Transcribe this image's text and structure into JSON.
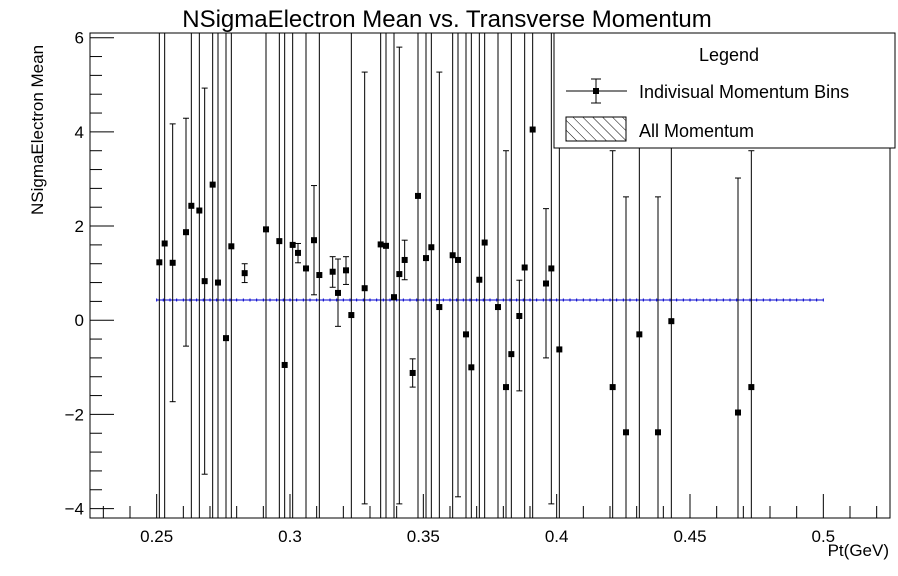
{
  "chart_data": {
    "type": "scatter",
    "title": "NSigmaElectron Mean vs. Transverse Momentum",
    "xlabel": "Pt(GeV)",
    "ylabel": "NSigmaElectron Mean",
    "xlim": [
      0.225,
      0.525
    ],
    "ylim": [
      -4.2,
      6.1
    ],
    "x_ticks": [
      0.25,
      0.3,
      0.35,
      0.4,
      0.45,
      0.5
    ],
    "x_tick_labels": [
      "0.25",
      "0.3",
      "0.35",
      "0.4",
      "0.45",
      "0.5"
    ],
    "y_ticks": [
      -4,
      -2,
      0,
      2,
      4,
      6
    ],
    "y_tick_labels": [
      "−4",
      "−2",
      "0",
      "2",
      "4",
      "6"
    ],
    "legend": {
      "title": "Legend",
      "position": "top-right",
      "entries": [
        {
          "label": "Indivisual Momentum Bins",
          "style": "marker-errorbar"
        },
        {
          "label": "All Momentum",
          "style": "hatched-fill"
        }
      ]
    },
    "series": [
      {
        "name": "Indivisual Momentum Bins",
        "color": "#000000",
        "points": [
          {
            "x": 0.251,
            "y": 1.23,
            "lo": -4.2,
            "hi": 6.1
          },
          {
            "x": 0.253,
            "y": 1.63,
            "lo": -4.2,
            "hi": 6.1
          },
          {
            "x": 0.256,
            "y": 1.22,
            "lo": -1.73,
            "hi": 4.17
          },
          {
            "x": 0.261,
            "y": 1.87,
            "lo": -0.55,
            "hi": 4.29
          },
          {
            "x": 0.263,
            "y": 2.43,
            "lo": -4.2,
            "hi": 6.1
          },
          {
            "x": 0.266,
            "y": 2.33,
            "lo": -4.2,
            "hi": 6.1
          },
          {
            "x": 0.268,
            "y": 0.83,
            "lo": -3.27,
            "hi": 4.93
          },
          {
            "x": 0.271,
            "y": 2.88,
            "lo": -4.2,
            "hi": 6.1
          },
          {
            "x": 0.273,
            "y": 0.8,
            "lo": -4.2,
            "hi": 6.1
          },
          {
            "x": 0.276,
            "y": -0.38,
            "lo": -4.2,
            "hi": 6.1
          },
          {
            "x": 0.278,
            "y": 1.57,
            "lo": -4.2,
            "hi": 6.1
          },
          {
            "x": 0.283,
            "y": 1.0,
            "lo": 0.8,
            "hi": 1.2
          },
          {
            "x": 0.291,
            "y": 1.93,
            "lo": -4.2,
            "hi": 6.1
          },
          {
            "x": 0.296,
            "y": 1.68,
            "lo": -4.2,
            "hi": 6.1
          },
          {
            "x": 0.298,
            "y": -0.95,
            "lo": -4.2,
            "hi": 6.1
          },
          {
            "x": 0.301,
            "y": 1.6,
            "lo": -4.2,
            "hi": 6.1
          },
          {
            "x": 0.303,
            "y": 1.43,
            "lo": 1.22,
            "hi": 1.63
          },
          {
            "x": 0.306,
            "y": 1.1,
            "lo": -4.2,
            "hi": 6.1
          },
          {
            "x": 0.309,
            "y": 1.7,
            "lo": 0.54,
            "hi": 2.86
          },
          {
            "x": 0.311,
            "y": 0.96,
            "lo": -4.2,
            "hi": 6.1
          },
          {
            "x": 0.316,
            "y": 1.03,
            "lo": 0.7,
            "hi": 1.35
          },
          {
            "x": 0.318,
            "y": 0.58,
            "lo": -0.13,
            "hi": 1.3
          },
          {
            "x": 0.321,
            "y": 1.06,
            "lo": 0.76,
            "hi": 1.35
          },
          {
            "x": 0.323,
            "y": 0.11,
            "lo": -4.2,
            "hi": 6.1
          },
          {
            "x": 0.328,
            "y": 0.68,
            "lo": -3.9,
            "hi": 5.27
          },
          {
            "x": 0.334,
            "y": 1.61,
            "lo": -4.2,
            "hi": 6.1
          },
          {
            "x": 0.336,
            "y": 1.58,
            "lo": -4.2,
            "hi": 6.1
          },
          {
            "x": 0.339,
            "y": 0.49,
            "lo": -4.2,
            "hi": 6.1
          },
          {
            "x": 0.341,
            "y": 0.98,
            "lo": -3.9,
            "hi": 5.8
          },
          {
            "x": 0.343,
            "y": 1.28,
            "lo": 0.86,
            "hi": 1.7
          },
          {
            "x": 0.346,
            "y": -1.12,
            "lo": -1.42,
            "hi": -0.82
          },
          {
            "x": 0.348,
            "y": 2.64,
            "lo": -4.2,
            "hi": 6.1
          },
          {
            "x": 0.351,
            "y": 1.32,
            "lo": -4.2,
            "hi": 6.1
          },
          {
            "x": 0.353,
            "y": 1.55,
            "lo": -4.2,
            "hi": 6.1
          },
          {
            "x": 0.356,
            "y": 0.28,
            "lo": -4.2,
            "hi": 5.27
          },
          {
            "x": 0.361,
            "y": 1.38,
            "lo": -4.2,
            "hi": 6.1
          },
          {
            "x": 0.363,
            "y": 1.28,
            "lo": -3.75,
            "hi": 6.1
          },
          {
            "x": 0.366,
            "y": -0.3,
            "lo": -4.2,
            "hi": 6.1
          },
          {
            "x": 0.368,
            "y": -1.0,
            "lo": -4.2,
            "hi": 6.1
          },
          {
            "x": 0.371,
            "y": 0.86,
            "lo": -4.2,
            "hi": 6.1
          },
          {
            "x": 0.373,
            "y": 1.65,
            "lo": -4.2,
            "hi": 6.1
          },
          {
            "x": 0.378,
            "y": 0.28,
            "lo": -4.2,
            "hi": 6.1
          },
          {
            "x": 0.381,
            "y": -1.42,
            "lo": -4.2,
            "hi": 3.6
          },
          {
            "x": 0.383,
            "y": -0.72,
            "lo": -4.2,
            "hi": 6.1
          },
          {
            "x": 0.386,
            "y": 0.09,
            "lo": -1.5,
            "hi": 0.85
          },
          {
            "x": 0.388,
            "y": 1.12,
            "lo": -4.2,
            "hi": 6.1
          },
          {
            "x": 0.391,
            "y": 4.05,
            "lo": -4.2,
            "hi": 6.1
          },
          {
            "x": 0.396,
            "y": 0.78,
            "lo": -0.8,
            "hi": 2.37
          },
          {
            "x": 0.398,
            "y": 1.1,
            "lo": -3.9,
            "hi": 6.1
          },
          {
            "x": 0.401,
            "y": -0.62,
            "lo": -4.2,
            "hi": 6.1
          },
          {
            "x": 0.421,
            "y": -1.42,
            "lo": -4.2,
            "hi": 3.6
          },
          {
            "x": 0.426,
            "y": -2.38,
            "lo": -4.2,
            "hi": 2.62
          },
          {
            "x": 0.431,
            "y": -0.3,
            "lo": -4.2,
            "hi": 6.1
          },
          {
            "x": 0.438,
            "y": -2.38,
            "lo": -4.2,
            "hi": 2.62
          },
          {
            "x": 0.443,
            "y": -0.02,
            "lo": -4.2,
            "hi": 6.1
          },
          {
            "x": 0.468,
            "y": -1.96,
            "lo": -4.2,
            "hi": 3.02
          },
          {
            "x": 0.473,
            "y": -1.42,
            "lo": -4.2,
            "hi": 3.6
          }
        ]
      },
      {
        "name": "All Momentum",
        "color": "#0000cc",
        "x": [
          0.25,
          0.5
        ],
        "y": 0.43
      }
    ]
  }
}
